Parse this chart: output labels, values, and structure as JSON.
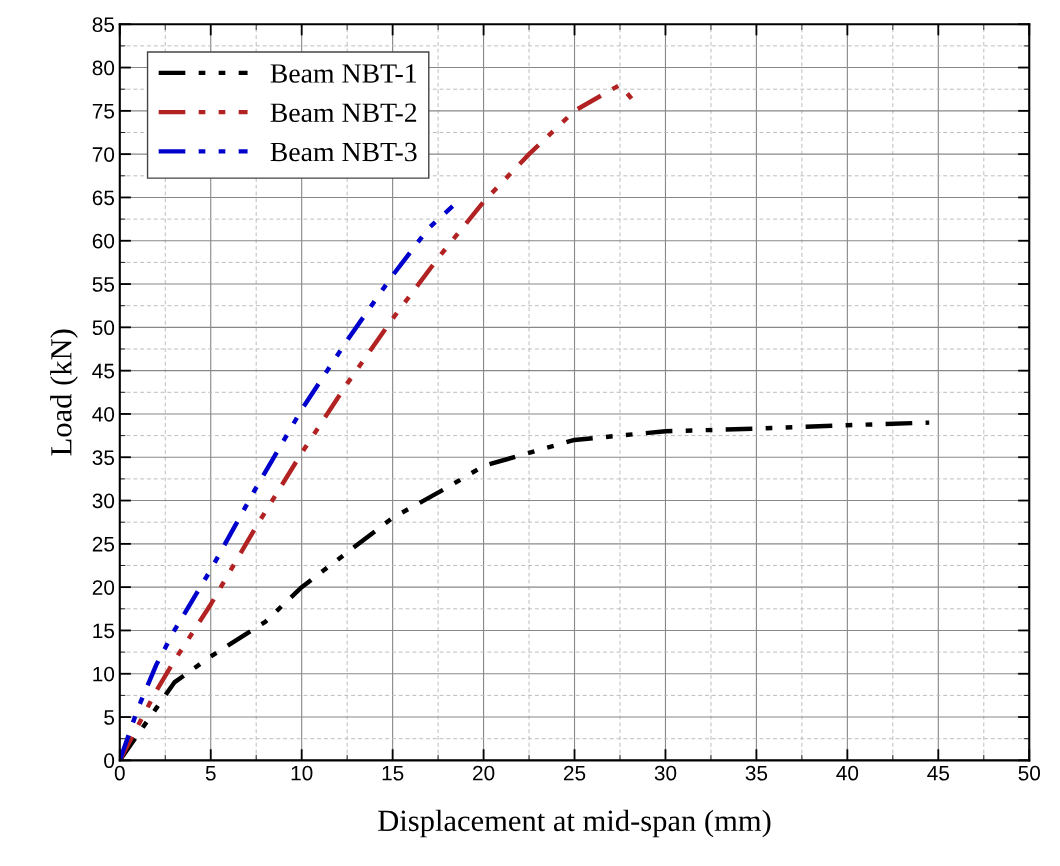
{
  "chart_data": {
    "type": "line",
    "xlabel": "Displacement at mid-span (mm)",
    "ylabel": "Load (kN)",
    "xlim": [
      0,
      50
    ],
    "xticks": [
      0,
      5,
      10,
      15,
      20,
      25,
      30,
      35,
      40,
      45,
      50
    ],
    "ylim": [
      0,
      85
    ],
    "yticks": [
      0,
      5,
      10,
      15,
      20,
      25,
      30,
      35,
      40,
      45,
      50,
      55,
      60,
      65,
      70,
      75,
      80,
      85
    ],
    "grid": true,
    "legend": "top left",
    "line_style": "dashdotdot",
    "marker": "none",
    "series": [
      {
        "name": "Beam NBT-1",
        "color": "#000000",
        "x": [
          0,
          1,
          2,
          3,
          5,
          8,
          10,
          12.5,
          15,
          18,
          20,
          25,
          30,
          35,
          40,
          44.5
        ],
        "values": [
          0,
          3,
          6,
          9,
          12,
          16,
          20,
          24,
          28,
          31.5,
          34,
          37,
          38,
          38.3,
          38.7,
          39
        ]
      },
      {
        "name": "Beam NBT-2",
        "color": "#b22222",
        "x": [
          0,
          1,
          2,
          3,
          5,
          7.5,
          10,
          12.5,
          15,
          17.5,
          20,
          22.5,
          25,
          27.5,
          28.3
        ],
        "values": [
          0,
          4,
          8,
          11.5,
          18,
          27,
          35.5,
          43.5,
          51,
          58,
          64.5,
          70,
          75,
          78,
          76
        ]
      },
      {
        "name": "Beam NBT-3",
        "color": "#0000cd",
        "x": [
          0,
          0.5,
          1,
          2,
          3,
          5,
          7.5,
          10,
          12.5,
          15,
          17,
          18.3
        ],
        "values": [
          0,
          3,
          6,
          11,
          15,
          22,
          31.5,
          40.5,
          48.5,
          56,
          61.5,
          64
        ]
      }
    ]
  }
}
